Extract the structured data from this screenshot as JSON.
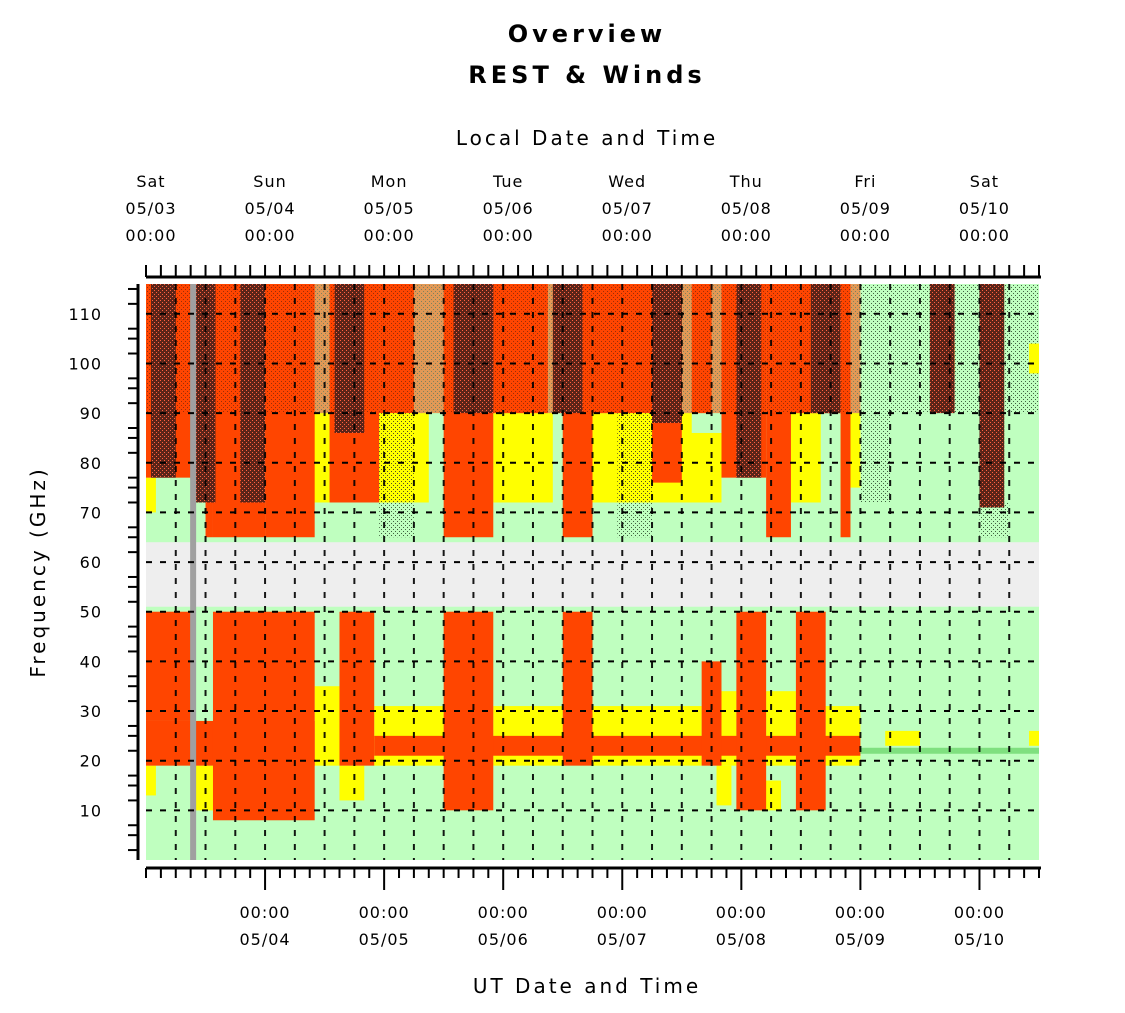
{
  "chart_data": {
    "type": "heatmap",
    "title": "Overview",
    "subtitle": "REST & Winds",
    "top_axis_label": "Local Date and Time",
    "xlabel": "UT Date and Time",
    "ylabel": "Frequency (GHz)",
    "ylim": [
      0,
      116
    ],
    "y_ticks": [
      10,
      20,
      30,
      40,
      50,
      60,
      70,
      80,
      90,
      100,
      110
    ],
    "top_ticks": [
      {
        "day": "Sat",
        "date": "05/03",
        "time": "00:00"
      },
      {
        "day": "Sun",
        "date": "05/04",
        "time": "00:00"
      },
      {
        "day": "Mon",
        "date": "05/05",
        "time": "00:00"
      },
      {
        "day": "Tue",
        "date": "05/06",
        "time": "00:00"
      },
      {
        "day": "Wed",
        "date": "05/07",
        "time": "00:00"
      },
      {
        "day": "Thu",
        "date": "05/08",
        "time": "00:00"
      },
      {
        "day": "Fri",
        "date": "05/09",
        "time": "00:00"
      },
      {
        "day": "Sat",
        "date": "05/10",
        "time": "00:00"
      }
    ],
    "bottom_ticks": [
      {
        "time": "00:00",
        "date": "05/04"
      },
      {
        "time": "00:00",
        "date": "05/05"
      },
      {
        "time": "00:00",
        "date": "05/06"
      },
      {
        "time": "00:00",
        "date": "05/07"
      },
      {
        "time": "00:00",
        "date": "05/08"
      },
      {
        "time": "00:00",
        "date": "05/09"
      },
      {
        "time": "00:00",
        "date": "05/10"
      }
    ],
    "x_range_hours": [
      0,
      180
    ],
    "excluded_band_ghz": [
      51,
      64
    ],
    "status_colors": {
      "good": "#bfffbf",
      "marginal": "#ffff00",
      "poor": "#ff4500",
      "wind_hatch": "#5a2418",
      "excluded": "#eeeeee",
      "line_22ghz": "#7fe07f",
      "grey_bar": "#a0a0a0"
    },
    "red_blocks": [
      {
        "x0": 0,
        "x1": 12,
        "y0": 77,
        "y1": 116
      },
      {
        "x0": 12,
        "x1": 13.5,
        "y0": 65,
        "y1": 116
      },
      {
        "x0": 13.5,
        "x1": 24,
        "y0": 65,
        "y1": 116
      },
      {
        "x0": 24,
        "x1": 34,
        "y0": 65,
        "y1": 116
      },
      {
        "x0": 37,
        "x1": 47,
        "y0": 72,
        "y1": 116
      },
      {
        "x0": 47,
        "x1": 54,
        "y0": 90,
        "y1": 116
      },
      {
        "x0": 60,
        "x1": 70,
        "y0": 65,
        "y1": 116
      },
      {
        "x0": 70,
        "x1": 81,
        "y0": 90,
        "y1": 116
      },
      {
        "x0": 84,
        "x1": 90,
        "y0": 65,
        "y1": 116
      },
      {
        "x0": 90,
        "x1": 102,
        "y0": 90,
        "y1": 116
      },
      {
        "x0": 102,
        "x1": 108,
        "y0": 76,
        "y1": 116
      },
      {
        "x0": 110,
        "x1": 114,
        "y0": 90,
        "y1": 116
      },
      {
        "x0": 116,
        "x1": 125,
        "y0": 77,
        "y1": 116
      },
      {
        "x0": 125,
        "x1": 130,
        "y0": 65,
        "y1": 116
      },
      {
        "x0": 130,
        "x1": 136,
        "y0": 90,
        "y1": 116
      },
      {
        "x0": 136,
        "x1": 140,
        "y0": 90,
        "y1": 116
      },
      {
        "x0": 140,
        "x1": 142,
        "y0": 65,
        "y1": 116
      },
      {
        "x0": 0,
        "x1": 34,
        "y0": 19,
        "y1": 28
      },
      {
        "x0": 0,
        "x1": 10,
        "y0": 28,
        "y1": 50
      },
      {
        "x0": 13.5,
        "x1": 34,
        "y0": 8,
        "y1": 50
      },
      {
        "x0": 39,
        "x1": 46,
        "y0": 19,
        "y1": 50
      },
      {
        "x0": 46,
        "x1": 144,
        "y0": 21,
        "y1": 25
      },
      {
        "x0": 60,
        "x1": 70,
        "y0": 10,
        "y1": 50
      },
      {
        "x0": 84,
        "x1": 90,
        "y0": 19,
        "y1": 50
      },
      {
        "x0": 112,
        "x1": 116,
        "y0": 19,
        "y1": 40
      },
      {
        "x0": 119,
        "x1": 125,
        "y0": 10,
        "y1": 50
      },
      {
        "x0": 131,
        "x1": 137,
        "y0": 10,
        "y1": 50
      }
    ],
    "yellow_blocks": [
      {
        "x0": 0,
        "x1": 2,
        "y0": 70,
        "y1": 77
      },
      {
        "x0": 33,
        "x1": 37,
        "y0": 72,
        "y1": 90
      },
      {
        "x0": 47,
        "x1": 57,
        "y0": 72,
        "y1": 90
      },
      {
        "x0": 70,
        "x1": 82,
        "y0": 72,
        "y1": 90
      },
      {
        "x0": 90,
        "x1": 110,
        "y0": 72,
        "y1": 90
      },
      {
        "x0": 108,
        "x1": 116,
        "y0": 72,
        "y1": 86
      },
      {
        "x0": 130,
        "x1": 136,
        "y0": 72,
        "y1": 90
      },
      {
        "x0": 140,
        "x1": 144,
        "y0": 75,
        "y1": 90
      },
      {
        "x0": 34,
        "x1": 39,
        "y0": 19,
        "y1": 35
      },
      {
        "x0": 46,
        "x1": 60,
        "y0": 19,
        "y1": 31
      },
      {
        "x0": 70,
        "x1": 84,
        "y0": 19,
        "y1": 31
      },
      {
        "x0": 90,
        "x1": 112,
        "y0": 19,
        "y1": 31
      },
      {
        "x0": 116,
        "x1": 119,
        "y0": 19,
        "y1": 34
      },
      {
        "x0": 125,
        "x1": 131,
        "y0": 19,
        "y1": 34
      },
      {
        "x0": 137,
        "x1": 144,
        "y0": 19,
        "y1": 31
      },
      {
        "x0": 0,
        "x1": 2,
        "y0": 13,
        "y1": 19
      },
      {
        "x0": 10,
        "x1": 13.5,
        "y0": 10,
        "y1": 19
      },
      {
        "x0": 39,
        "x1": 44,
        "y0": 12,
        "y1": 19
      },
      {
        "x0": 115,
        "x1": 118,
        "y0": 11,
        "y1": 19
      },
      {
        "x0": 124,
        "x1": 128,
        "y0": 10,
        "y1": 16
      },
      {
        "x0": 149,
        "x1": 156,
        "y0": 23,
        "y1": 26
      },
      {
        "x0": 178,
        "x1": 180,
        "y0": 23,
        "y1": 26
      },
      {
        "x0": 161,
        "x1": 163,
        "y0": 98,
        "y1": 104
      },
      {
        "x0": 178,
        "x1": 180,
        "y0": 98,
        "y1": 104
      }
    ],
    "wind_hatch_blocks": [
      {
        "x0": 1,
        "x1": 6,
        "y0": 77,
        "y1": 116
      },
      {
        "x0": 10,
        "x1": 14,
        "y0": 72,
        "y1": 116
      },
      {
        "x0": 19,
        "x1": 24,
        "y0": 72,
        "y1": 116
      },
      {
        "x0": 38,
        "x1": 44,
        "y0": 86,
        "y1": 116
      },
      {
        "x0": 62,
        "x1": 70,
        "y0": 90,
        "y1": 116
      },
      {
        "x0": 82,
        "x1": 88,
        "y0": 90,
        "y1": 116
      },
      {
        "x0": 102,
        "x1": 108,
        "y0": 88,
        "y1": 116
      },
      {
        "x0": 119,
        "x1": 124,
        "y0": 77,
        "y1": 116
      },
      {
        "x0": 134,
        "x1": 140,
        "y0": 90,
        "y1": 116
      },
      {
        "x0": 158,
        "x1": 163,
        "y0": 90,
        "y1": 116
      },
      {
        "x0": 168,
        "x1": 173,
        "y0": 71,
        "y1": 116
      }
    ],
    "gray_bar_hour": 9.5,
    "line_22ghz": {
      "x0": 144,
      "x1": 180,
      "y": 22
    }
  }
}
